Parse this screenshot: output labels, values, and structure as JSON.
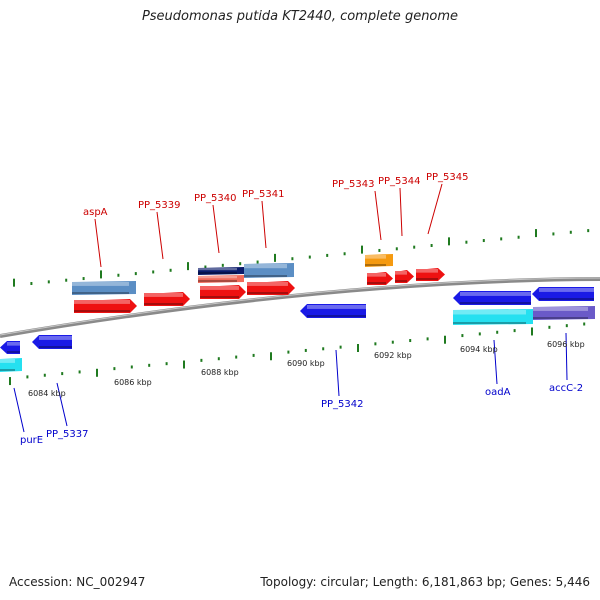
{
  "title": "Pseudomonas putida KT2440, complete genome",
  "accession": "Accession: NC_002947",
  "summary": "Topology: circular; Length: 6,181,863 bp; Genes: 5,446",
  "colors": {
    "backbone": "#8a8a8a",
    "tick": "#1f7a1f",
    "forward_label": "#cc0000",
    "reverse_label": "#0000cc",
    "red_gene": "#ee1111",
    "blue_gene": "#1a1ae6",
    "steel_gene": "#5b8ec4",
    "orange_gene": "#f59a10",
    "navy_gene": "#0a1a6a",
    "salmon_gene": "#f26a5a",
    "cyan_gene": "#25e0f0",
    "purple_gene": "#6a5ac8"
  },
  "tick_labels": [
    "6084 kbp",
    "6086 kbp",
    "6088 kbp",
    "6090 kbp",
    "6092 kbp",
    "6094 kbp",
    "6096 kbp"
  ],
  "forward_gene_labels": [
    "aspA",
    "PP_5339",
    "PP_5340",
    "PP_5341",
    "PP_5343",
    "PP_5344",
    "PP_5345"
  ],
  "reverse_gene_labels": [
    "purE",
    "PP_5337",
    "PP_5342",
    "oadA",
    "accC-2"
  ]
}
